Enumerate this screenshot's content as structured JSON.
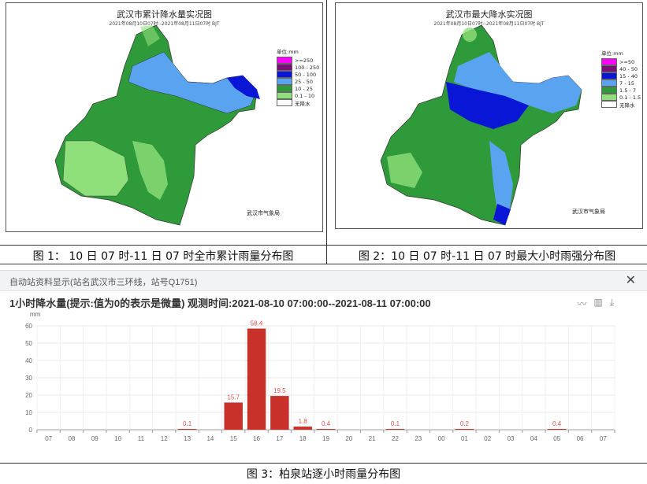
{
  "map1": {
    "title": "武汉市累计降水量实况图",
    "subtitle": "2021年08月10日07时--2021年08月11日07时   BJT",
    "legend_unit": "单位:mm",
    "legend": [
      {
        "label": ">=250",
        "color": "#ff00ff"
      },
      {
        "label": "100 - 250",
        "color": "#7a0f7a"
      },
      {
        "label": "50 - 100",
        "color": "#0a16d6"
      },
      {
        "label": "25 - 50",
        "color": "#5aa3f0"
      },
      {
        "label": "10 - 25",
        "color": "#2e9a3a"
      },
      {
        "label": "0.1 - 10",
        "color": "#8fe07a"
      },
      {
        "label": "无降水",
        "color": "#ffffff"
      }
    ],
    "agency": "武汉市气象局",
    "caption": "图 1：  10 日 07 时-11 日 07 时全市累计雨量分布图"
  },
  "map2": {
    "title": "武汉市最大降水实况图",
    "subtitle": "2021年08月10日07时--2021年08月11日07时   BJT",
    "legend_unit": "单位:mm",
    "legend": [
      {
        "label": ">=50",
        "color": "#ff00ff"
      },
      {
        "label": "40 - 50",
        "color": "#7a0f7a"
      },
      {
        "label": "15 - 40",
        "color": "#0a16d6"
      },
      {
        "label": "7 - 15",
        "color": "#5aa3f0"
      },
      {
        "label": "1.5 - 7",
        "color": "#2e9a3a"
      },
      {
        "label": "0.1 - 1.5",
        "color": "#8fe07a"
      },
      {
        "label": "无降水",
        "color": "#ffffff"
      }
    ],
    "agency": "武汉市气象局",
    "caption": "图 2：10 日 07 时-11 日 07 时最大小时雨强分布图"
  },
  "panel3": {
    "header": "自动站资料显示(站名武汉市三环线，站号Q1751)",
    "close_icon": "close-icon",
    "title": "1小时降水量(提示:值为0的表示是微量)   观测时间:2021-08-10 07:00:00--2021-08-11 07:00:00",
    "icons": [
      "line-chart-icon",
      "bar-chart-icon",
      "download-icon"
    ],
    "caption": "图 3：柏泉站逐小时雨量分布图"
  },
  "chart_data": {
    "type": "bar",
    "ylabel": "mm",
    "ylim": [
      0,
      60
    ],
    "yticks": [
      0,
      10,
      20,
      30,
      40,
      50,
      60
    ],
    "bar_color": "#c8302a",
    "label_color": "#e05050",
    "categories": [
      "07",
      "08",
      "09",
      "10",
      "11",
      "12",
      "13",
      "14",
      "15",
      "16",
      "17",
      "18",
      "19",
      "20",
      "21",
      "22",
      "23",
      "00",
      "01",
      "02",
      "03",
      "04",
      "05",
      "06",
      "07"
    ],
    "values": [
      0,
      0,
      0,
      0,
      0,
      0,
      0.1,
      0,
      15.7,
      58.4,
      19.5,
      1.8,
      0.4,
      0,
      0,
      0.1,
      0,
      0,
      0.2,
      0,
      0,
      0,
      0.4,
      0,
      0
    ],
    "labels": [
      "",
      "",
      "",
      "",
      "",
      "",
      "0.1",
      "",
      "15.7",
      "58.4",
      "19.5",
      "1.8",
      "0.4",
      "",
      "",
      "0.1",
      "",
      "",
      "0.2",
      "",
      "",
      "",
      "0.4",
      "",
      ""
    ]
  }
}
